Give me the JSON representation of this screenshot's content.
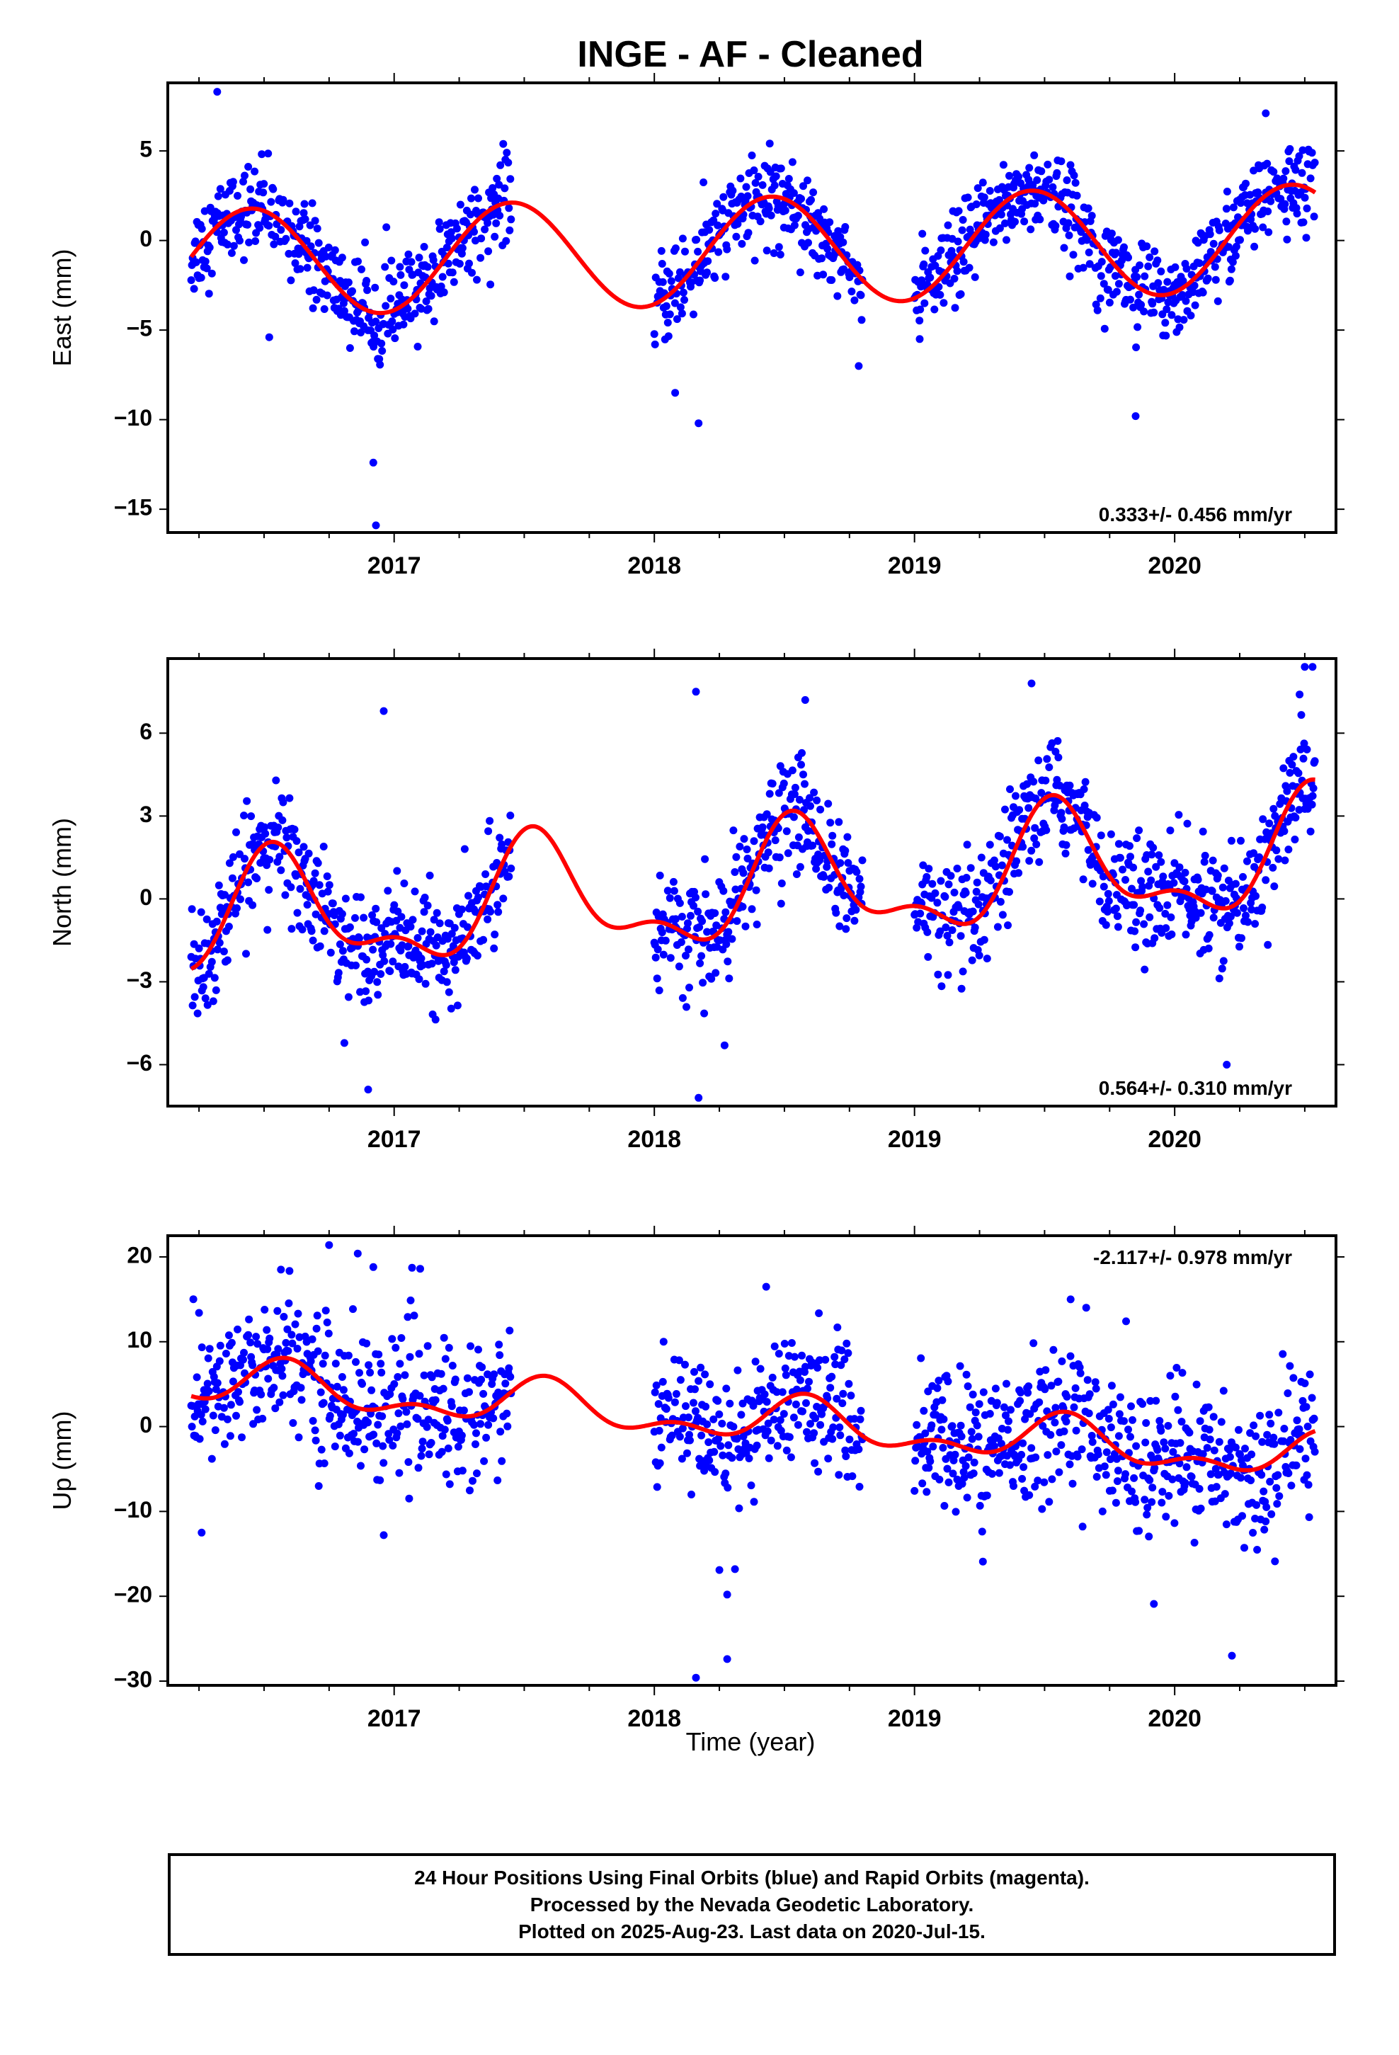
{
  "title": "INGE  - AF - Cleaned",
  "xlabel": "Time (year)",
  "footer": {
    "line1": "24 Hour Positions Using Final Orbits (blue) and Rapid Orbits (magenta).",
    "line2": "Processed by the Nevada Geodetic Laboratory.",
    "line3": "Plotted on 2025-Aug-23. Last data on 2020-Jul-15."
  },
  "colors": {
    "points": "#0000ff",
    "fit": "#ff0000"
  },
  "chart_data": [
    {
      "type": "scatter",
      "panel": "east",
      "ylabel": "East (mm)",
      "rate": "0.333+/- 0.456 mm/yr",
      "rate_position": "bottom-right",
      "xlim": [
        2016.13,
        2020.62
      ],
      "ylim": [
        -16.3,
        8.8
      ],
      "xticks": [
        2017,
        2018,
        2019,
        2020
      ],
      "yticks": [
        5,
        0,
        -5,
        -10,
        -15
      ],
      "data_segments": [
        [
          2016.22,
          2017.45
        ],
        [
          2018.0,
          2018.8
        ],
        [
          2019.0,
          2020.54
        ]
      ],
      "fit": {
        "trend": 0.333,
        "intercept": -1.3,
        "annual_amp": 3.0,
        "annual_peak": 2016.45,
        "semi_amp": 0.0,
        "semi_peak": 2016.2
      },
      "scatter_sd": 1.25,
      "outliers": [
        [
          2016.32,
          8.3
        ],
        [
          2016.92,
          -12.4
        ],
        [
          2016.93,
          -15.9
        ],
        [
          2018.17,
          -10.2
        ],
        [
          2019.85,
          -9.8
        ],
        [
          2020.35,
          7.1
        ],
        [
          2016.52,
          -5.4
        ],
        [
          2018.08,
          -8.5
        ],
        [
          2019.02,
          -5.5
        ]
      ],
      "fit_curve": [
        [
          2016.22,
          -1.2
        ],
        [
          2016.45,
          1.6
        ],
        [
          2016.95,
          -4.3
        ],
        [
          2017.45,
          2.0
        ],
        [
          2017.95,
          -3.9
        ],
        [
          2018.45,
          2.3
        ],
        [
          2018.95,
          -3.6
        ],
        [
          2019.45,
          2.6
        ],
        [
          2019.95,
          -3.3
        ],
        [
          2020.54,
          2.9
        ]
      ]
    },
    {
      "type": "scatter",
      "panel": "north",
      "ylabel": "North (mm)",
      "rate": "0.564+/- 0.310 mm/yr",
      "rate_position": "bottom-right",
      "xlim": [
        2016.13,
        2020.62
      ],
      "ylim": [
        -7.5,
        8.7
      ],
      "xticks": [
        2017,
        2018,
        2019,
        2020
      ],
      "yticks": [
        6,
        3,
        0,
        -3,
        -6
      ],
      "data_segments": [
        [
          2016.22,
          2017.45
        ],
        [
          2018.0,
          2018.8
        ],
        [
          2019.0,
          2020.54
        ]
      ],
      "fit": {
        "trend": 0.564,
        "intercept": -0.9,
        "annual_amp": 1.9,
        "annual_peak": 2016.55,
        "semi_amp": 0.9,
        "semi_peak": 2016.52
      },
      "scatter_sd": 1.0,
      "outliers": [
        [
          2016.9,
          -6.9
        ],
        [
          2016.96,
          6.8
        ],
        [
          2018.16,
          7.5
        ],
        [
          2018.17,
          -7.2
        ],
        [
          2018.27,
          -5.3
        ],
        [
          2019.45,
          7.8
        ],
        [
          2020.2,
          -6.0
        ],
        [
          2020.48,
          7.4
        ],
        [
          2020.5,
          8.4
        ],
        [
          2020.53,
          8.4
        ],
        [
          2018.58,
          7.2
        ]
      ],
      "fit_curve": [
        [
          2016.22,
          -2.8
        ],
        [
          2016.55,
          2.2
        ],
        [
          2016.82,
          -2.0
        ],
        [
          2017.0,
          -1.1
        ],
        [
          2017.22,
          -2.2
        ],
        [
          2017.52,
          2.8
        ],
        [
          2017.82,
          -1.4
        ],
        [
          2018.0,
          -0.5
        ],
        [
          2018.22,
          -1.7
        ],
        [
          2018.5,
          3.3
        ],
        [
          2018.8,
          -0.9
        ],
        [
          2019.0,
          0.0
        ],
        [
          2019.22,
          -1.0
        ],
        [
          2019.5,
          3.9
        ],
        [
          2019.8,
          -0.3
        ],
        [
          2020.0,
          0.6
        ],
        [
          2020.22,
          -0.5
        ],
        [
          2020.54,
          4.4
        ]
      ]
    },
    {
      "type": "scatter",
      "panel": "up",
      "ylabel": "Up (mm)",
      "rate": "-2.117+/- 0.978 mm/yr",
      "rate_position": "top-right",
      "xlim": [
        2016.13,
        2020.62
      ],
      "ylim": [
        -30.5,
        22.5
      ],
      "xticks": [
        2017,
        2018,
        2019,
        2020
      ],
      "yticks": [
        20,
        10,
        0,
        -10,
        -20,
        -30
      ],
      "data_segments": [
        [
          2016.22,
          2017.45
        ],
        [
          2018.0,
          2018.8
        ],
        [
          2019.0,
          2020.54
        ]
      ],
      "fit": {
        "trend": -2.117,
        "intercept": 5.3,
        "annual_amp": 2.2,
        "annual_peak": 2016.58,
        "semi_amp": 1.4,
        "semi_peak": 2016.58
      },
      "scatter_sd": 4.2,
      "outliers": [
        [
          2016.75,
          21.4
        ],
        [
          2016.86,
          20.4
        ],
        [
          2016.92,
          18.8
        ],
        [
          2017.1,
          18.6
        ],
        [
          2018.16,
          -29.6
        ],
        [
          2018.28,
          -27.4
        ],
        [
          2018.25,
          -16.9
        ],
        [
          2018.28,
          -19.8
        ],
        [
          2018.31,
          -16.8
        ],
        [
          2019.6,
          15.0
        ],
        [
          2020.22,
          -27.0
        ],
        [
          2019.92,
          -20.9
        ],
        [
          2016.26,
          -12.5
        ],
        [
          2016.96,
          -12.8
        ]
      ],
      "fit_curve": [
        [
          2016.22,
          2.0
        ],
        [
          2016.58,
          7.8
        ],
        [
          2016.85,
          3.0
        ],
        [
          2017.05,
          3.0
        ],
        [
          2017.3,
          0.3
        ],
        [
          2017.58,
          5.6
        ],
        [
          2017.85,
          1.0
        ],
        [
          2018.05,
          1.0
        ],
        [
          2018.28,
          -2.1
        ],
        [
          2018.58,
          3.4
        ],
        [
          2018.85,
          -1.3
        ],
        [
          2019.05,
          -1.2
        ],
        [
          2019.3,
          -3.9
        ],
        [
          2019.58,
          1.5
        ],
        [
          2019.85,
          -3.2
        ],
        [
          2020.05,
          -3.2
        ],
        [
          2020.3,
          -6.6
        ],
        [
          2020.54,
          -0.6
        ]
      ]
    }
  ]
}
